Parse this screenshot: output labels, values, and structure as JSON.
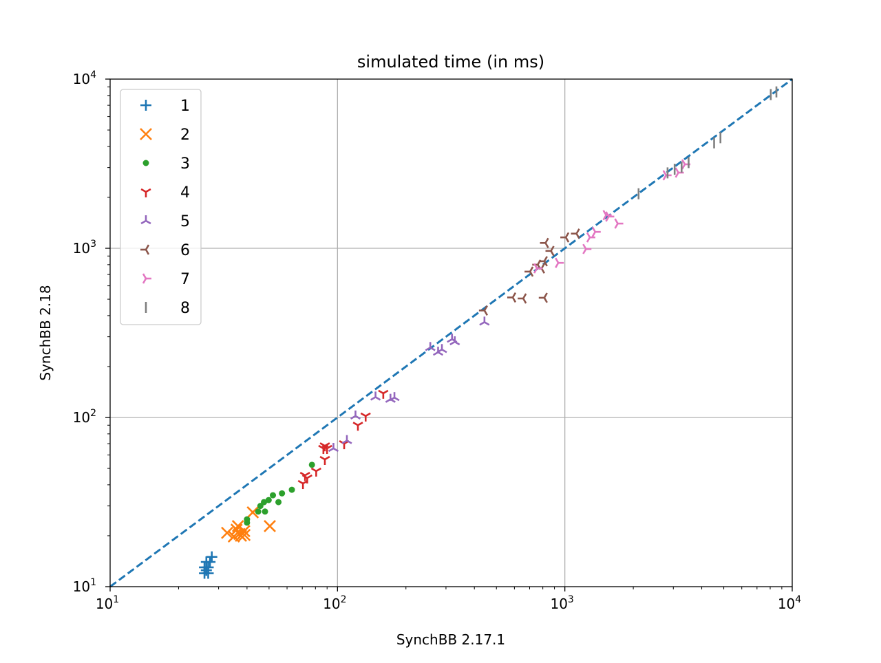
{
  "chart_data": {
    "type": "scatter",
    "title": "simulated time (in ms)",
    "xlabel": "SynchBB 2.17.1",
    "ylabel": "SynchBB 2.18",
    "xscale": "log",
    "yscale": "log",
    "xlim": [
      10,
      10000
    ],
    "ylim": [
      10,
      10000
    ],
    "grid": true,
    "legend_position": "top-left",
    "x_ticks": [
      {
        "base": "10",
        "exp": "1"
      },
      {
        "base": "10",
        "exp": "2"
      },
      {
        "base": "10",
        "exp": "3"
      },
      {
        "base": "10",
        "exp": "4"
      }
    ],
    "y_ticks": [
      {
        "base": "10",
        "exp": "1"
      },
      {
        "base": "10",
        "exp": "2"
      },
      {
        "base": "10",
        "exp": "3"
      },
      {
        "base": "10",
        "exp": "4"
      }
    ],
    "reference_line": {
      "style": "dashed",
      "color": "#1f77b4",
      "x": [
        10,
        10000
      ],
      "y": [
        10,
        10000
      ]
    },
    "series": [
      {
        "name": "1",
        "marker": "plus",
        "color": "#1f77b4",
        "points": [
          [
            26,
            12
          ],
          [
            26,
            13
          ],
          [
            26.5,
            14
          ],
          [
            27,
            12
          ],
          [
            27,
            13
          ],
          [
            27.5,
            14
          ],
          [
            28,
            15
          ],
          [
            26.5,
            12.5
          ]
        ]
      },
      {
        "name": "2",
        "marker": "x",
        "color": "#ff7f0e",
        "points": [
          [
            32.7,
            20.8
          ],
          [
            35,
            19.8
          ],
          [
            36,
            21.7
          ],
          [
            37,
            20.5
          ],
          [
            37.6,
            20
          ],
          [
            38.9,
            21.3
          ],
          [
            36.5,
            22.8
          ],
          [
            39,
            20.2
          ],
          [
            42.4,
            27.5
          ],
          [
            50.4,
            22.8
          ]
        ]
      },
      {
        "name": "3",
        "marker": "dot",
        "color": "#2ca02c",
        "points": [
          [
            40,
            23.9
          ],
          [
            40,
            25
          ],
          [
            44.8,
            27.8
          ],
          [
            48,
            27.8
          ],
          [
            45.8,
            30
          ],
          [
            47.5,
            31.6
          ],
          [
            49.8,
            32.5
          ],
          [
            52,
            34.7
          ],
          [
            55,
            31.6
          ],
          [
            57,
            35.6
          ],
          [
            63,
            37.4
          ],
          [
            77.2,
            52.5
          ]
        ]
      },
      {
        "name": "4",
        "marker": "tri_down",
        "color": "#d62728",
        "points": [
          [
            70.5,
            40.7
          ],
          [
            73.6,
            43.9
          ],
          [
            72,
            45.5
          ],
          [
            80.6,
            48.2
          ],
          [
            88,
            56.5
          ],
          [
            86.7,
            65.6
          ],
          [
            90,
            65.6
          ],
          [
            88,
            68
          ],
          [
            107,
            70
          ],
          [
            123,
            90
          ],
          [
            133,
            102
          ],
          [
            159,
            139
          ]
        ]
      },
      {
        "name": "5",
        "marker": "tri_up",
        "color": "#9467bd",
        "points": [
          [
            96,
            65.6
          ],
          [
            110,
            73
          ],
          [
            120,
            102
          ],
          [
            147,
            132
          ],
          [
            171,
            128
          ],
          [
            178,
            131
          ],
          [
            256,
            259
          ],
          [
            277,
            243
          ],
          [
            288,
            252
          ],
          [
            319,
            290
          ],
          [
            328,
            280
          ],
          [
            443,
            366
          ]
        ]
      },
      {
        "name": "6",
        "marker": "tri_left",
        "color": "#8c564b",
        "points": [
          [
            443,
            429
          ],
          [
            590,
            512
          ],
          [
            656,
            505
          ],
          [
            703,
            728
          ],
          [
            760,
            800
          ],
          [
            790,
            760
          ],
          [
            812,
            838
          ],
          [
            822,
            1075
          ],
          [
            812,
            510
          ],
          [
            869,
            965
          ],
          [
            1010,
            1160
          ],
          [
            1125,
            1221
          ]
        ]
      },
      {
        "name": "7",
        "marker": "tri_right",
        "color": "#e377c2",
        "points": [
          [
            754,
            761
          ],
          [
            936,
            820
          ],
          [
            1238,
            990
          ],
          [
            1288,
            1160
          ],
          [
            1360,
            1250
          ],
          [
            1519,
            1570
          ],
          [
            1560,
            1540
          ],
          [
            1709,
            1400
          ],
          [
            2787,
            2700
          ],
          [
            3157,
            2800
          ],
          [
            3373,
            3135
          ]
        ]
      },
      {
        "name": "8",
        "marker": "vline",
        "color": "#7f7f7f",
        "points": [
          [
            2110,
            2100
          ],
          [
            2830,
            2790
          ],
          [
            3040,
            2930
          ],
          [
            3262,
            3020
          ],
          [
            3502,
            3210
          ],
          [
            4534,
            4200
          ],
          [
            4835,
            4500
          ],
          [
            8049,
            8100
          ],
          [
            8520,
            8400
          ]
        ]
      }
    ]
  }
}
